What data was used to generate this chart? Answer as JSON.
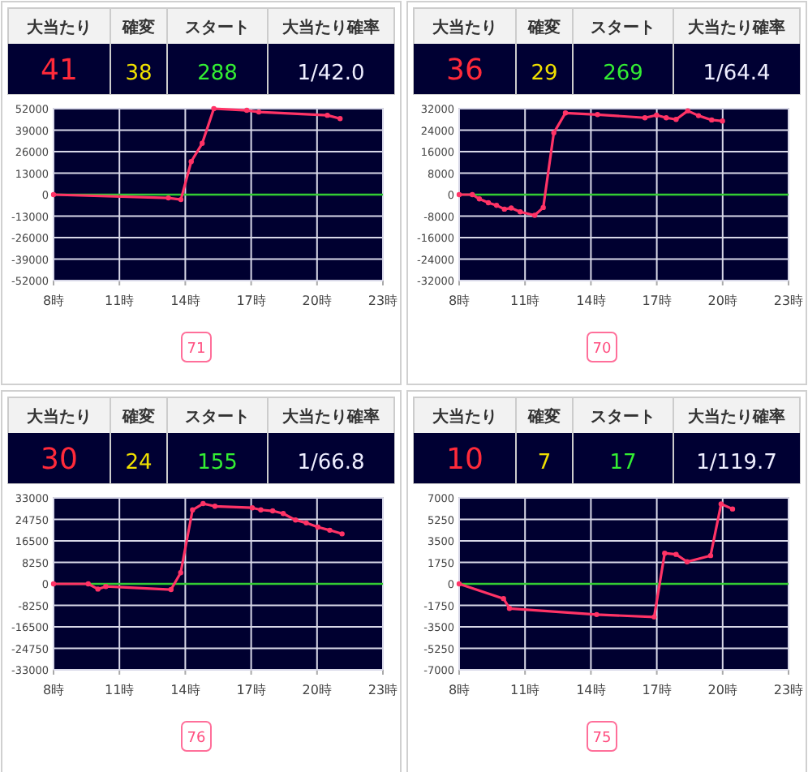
{
  "chart_data": [
    {
      "type": "other",
      "categories": [
        "大当たり",
        "確変",
        "スタート",
        "大当たり確率"
      ],
      "value_labels": [
        "41",
        "38",
        "288",
        "1/42.0"
      ]
    },
    {
      "type": "line",
      "x": [
        8.0,
        13.23,
        13.8,
        14.27,
        14.77,
        15.3,
        16.8,
        17.35,
        20.47,
        21.05
      ],
      "series": [
        {
          "color": "#ff3366",
          "values": [
            0,
            -2000,
            -3000,
            20000,
            31000,
            52000,
            51000,
            50000,
            48000,
            46000
          ]
        }
      ],
      "xlim": [
        8,
        23
      ],
      "xticks": [
        {
          "value": 8,
          "label": "8時"
        },
        {
          "value": 11,
          "label": "11時"
        },
        {
          "value": 14,
          "label": "14時"
        },
        {
          "value": 17,
          "label": "17時"
        },
        {
          "value": 20,
          "label": "20時"
        },
        {
          "value": 23,
          "label": "23時"
        }
      ],
      "ylim": [
        -52000,
        52000
      ],
      "yticks": [
        -52000,
        -39000,
        -26000,
        -13000,
        0,
        13000,
        26000,
        39000,
        52000
      ],
      "grid": true,
      "marker": "circle",
      "ref_lines": [
        {
          "axis": "y",
          "value": 0,
          "color": "#33cc33"
        }
      ],
      "annotations": [
        "71"
      ]
    },
    {
      "type": "other",
      "categories": [
        "大当たり",
        "確変",
        "スタート",
        "大当たり確率"
      ],
      "value_labels": [
        "36",
        "29",
        "269",
        "1/64.4"
      ]
    },
    {
      "type": "line",
      "x": [
        8.0,
        8.6,
        8.92,
        9.33,
        9.7,
        10.06,
        10.37,
        10.78,
        11.44,
        11.83,
        12.31,
        12.84,
        14.3,
        16.46,
        16.99,
        17.43,
        17.88,
        18.41,
        18.9,
        19.5,
        19.99
      ],
      "series": [
        {
          "color": "#ff3366",
          "values": [
            0,
            0,
            -1600,
            -3000,
            -4000,
            -5400,
            -5000,
            -6400,
            -7700,
            -4800,
            23000,
            30400,
            29800,
            28600,
            29600,
            28600,
            28000,
            31200,
            29400,
            27800,
            27400
          ]
        }
      ],
      "xlim": [
        8,
        23
      ],
      "xticks": [
        {
          "value": 8,
          "label": "8時"
        },
        {
          "value": 11,
          "label": "11時"
        },
        {
          "value": 14,
          "label": "14時"
        },
        {
          "value": 17,
          "label": "17時"
        },
        {
          "value": 20,
          "label": "20時"
        },
        {
          "value": 23,
          "label": "23時"
        }
      ],
      "ylim": [
        -32000,
        32000
      ],
      "yticks": [
        -32000,
        -24000,
        -16000,
        -8000,
        0,
        8000,
        16000,
        24000,
        32000
      ],
      "grid": true,
      "marker": "circle",
      "ref_lines": [
        {
          "axis": "y",
          "value": 0,
          "color": "#33cc33"
        }
      ],
      "annotations": [
        "70"
      ]
    },
    {
      "type": "other",
      "categories": [
        "大当たり",
        "確変",
        "スタート",
        "大当たり確率"
      ],
      "value_labels": [
        "30",
        "24",
        "155",
        "1/66.8"
      ]
    },
    {
      "type": "line",
      "x": [
        8.0,
        9.58,
        10.02,
        10.38,
        13.35,
        13.79,
        14.33,
        14.81,
        15.35,
        17.05,
        17.44,
        17.98,
        18.46,
        19.02,
        19.51,
        20.04,
        20.58,
        21.14
      ],
      "series": [
        {
          "color": "#ff3366",
          "values": [
            0,
            0,
            -2000,
            -1000,
            -2200,
            4300,
            28400,
            30800,
            29800,
            29200,
            28400,
            28000,
            27000,
            24500,
            23400,
            21800,
            20600,
            19200
          ]
        }
      ],
      "xlim": [
        8,
        23
      ],
      "xticks": [
        {
          "value": 8,
          "label": "8時"
        },
        {
          "value": 11,
          "label": "11時"
        },
        {
          "value": 14,
          "label": "14時"
        },
        {
          "value": 17,
          "label": "17時"
        },
        {
          "value": 20,
          "label": "20時"
        },
        {
          "value": 23,
          "label": "23時"
        }
      ],
      "ylim": [
        -33000,
        33000
      ],
      "yticks": [
        -33000,
        -24750,
        -16500,
        -8250,
        0,
        8250,
        16500,
        24750,
        33000
      ],
      "grid": true,
      "marker": "circle",
      "ref_lines": [
        {
          "axis": "y",
          "value": 0,
          "color": "#33cc33"
        }
      ],
      "annotations": [
        "76"
      ]
    },
    {
      "type": "other",
      "categories": [
        "大当たり",
        "確変",
        "スタート",
        "大当たり確率"
      ],
      "value_labels": [
        "10",
        "7",
        "17",
        "1/119.7"
      ]
    },
    {
      "type": "line",
      "x": [
        8.0,
        10.02,
        10.29,
        14.26,
        16.88,
        17.36,
        17.88,
        18.38,
        19.45,
        19.93,
        20.45
      ],
      "series": [
        {
          "color": "#ff3366",
          "values": [
            0,
            -1200,
            -2000,
            -2500,
            -2700,
            2500,
            2400,
            1800,
            2300,
            6500,
            6100
          ]
        }
      ],
      "xlim": [
        8,
        23
      ],
      "xticks": [
        {
          "value": 8,
          "label": "8時"
        },
        {
          "value": 11,
          "label": "11時"
        },
        {
          "value": 14,
          "label": "14時"
        },
        {
          "value": 17,
          "label": "17時"
        },
        {
          "value": 20,
          "label": "20時"
        },
        {
          "value": 23,
          "label": "23時"
        }
      ],
      "ylim": [
        -7000,
        7000
      ],
      "yticks": [
        -7000,
        -5250,
        -3500,
        -1750,
        0,
        1750,
        3500,
        5250,
        7000
      ],
      "grid": true,
      "marker": "circle",
      "ref_lines": [
        {
          "axis": "y",
          "value": 0,
          "color": "#33cc33"
        }
      ],
      "annotations": [
        "75"
      ]
    }
  ]
}
